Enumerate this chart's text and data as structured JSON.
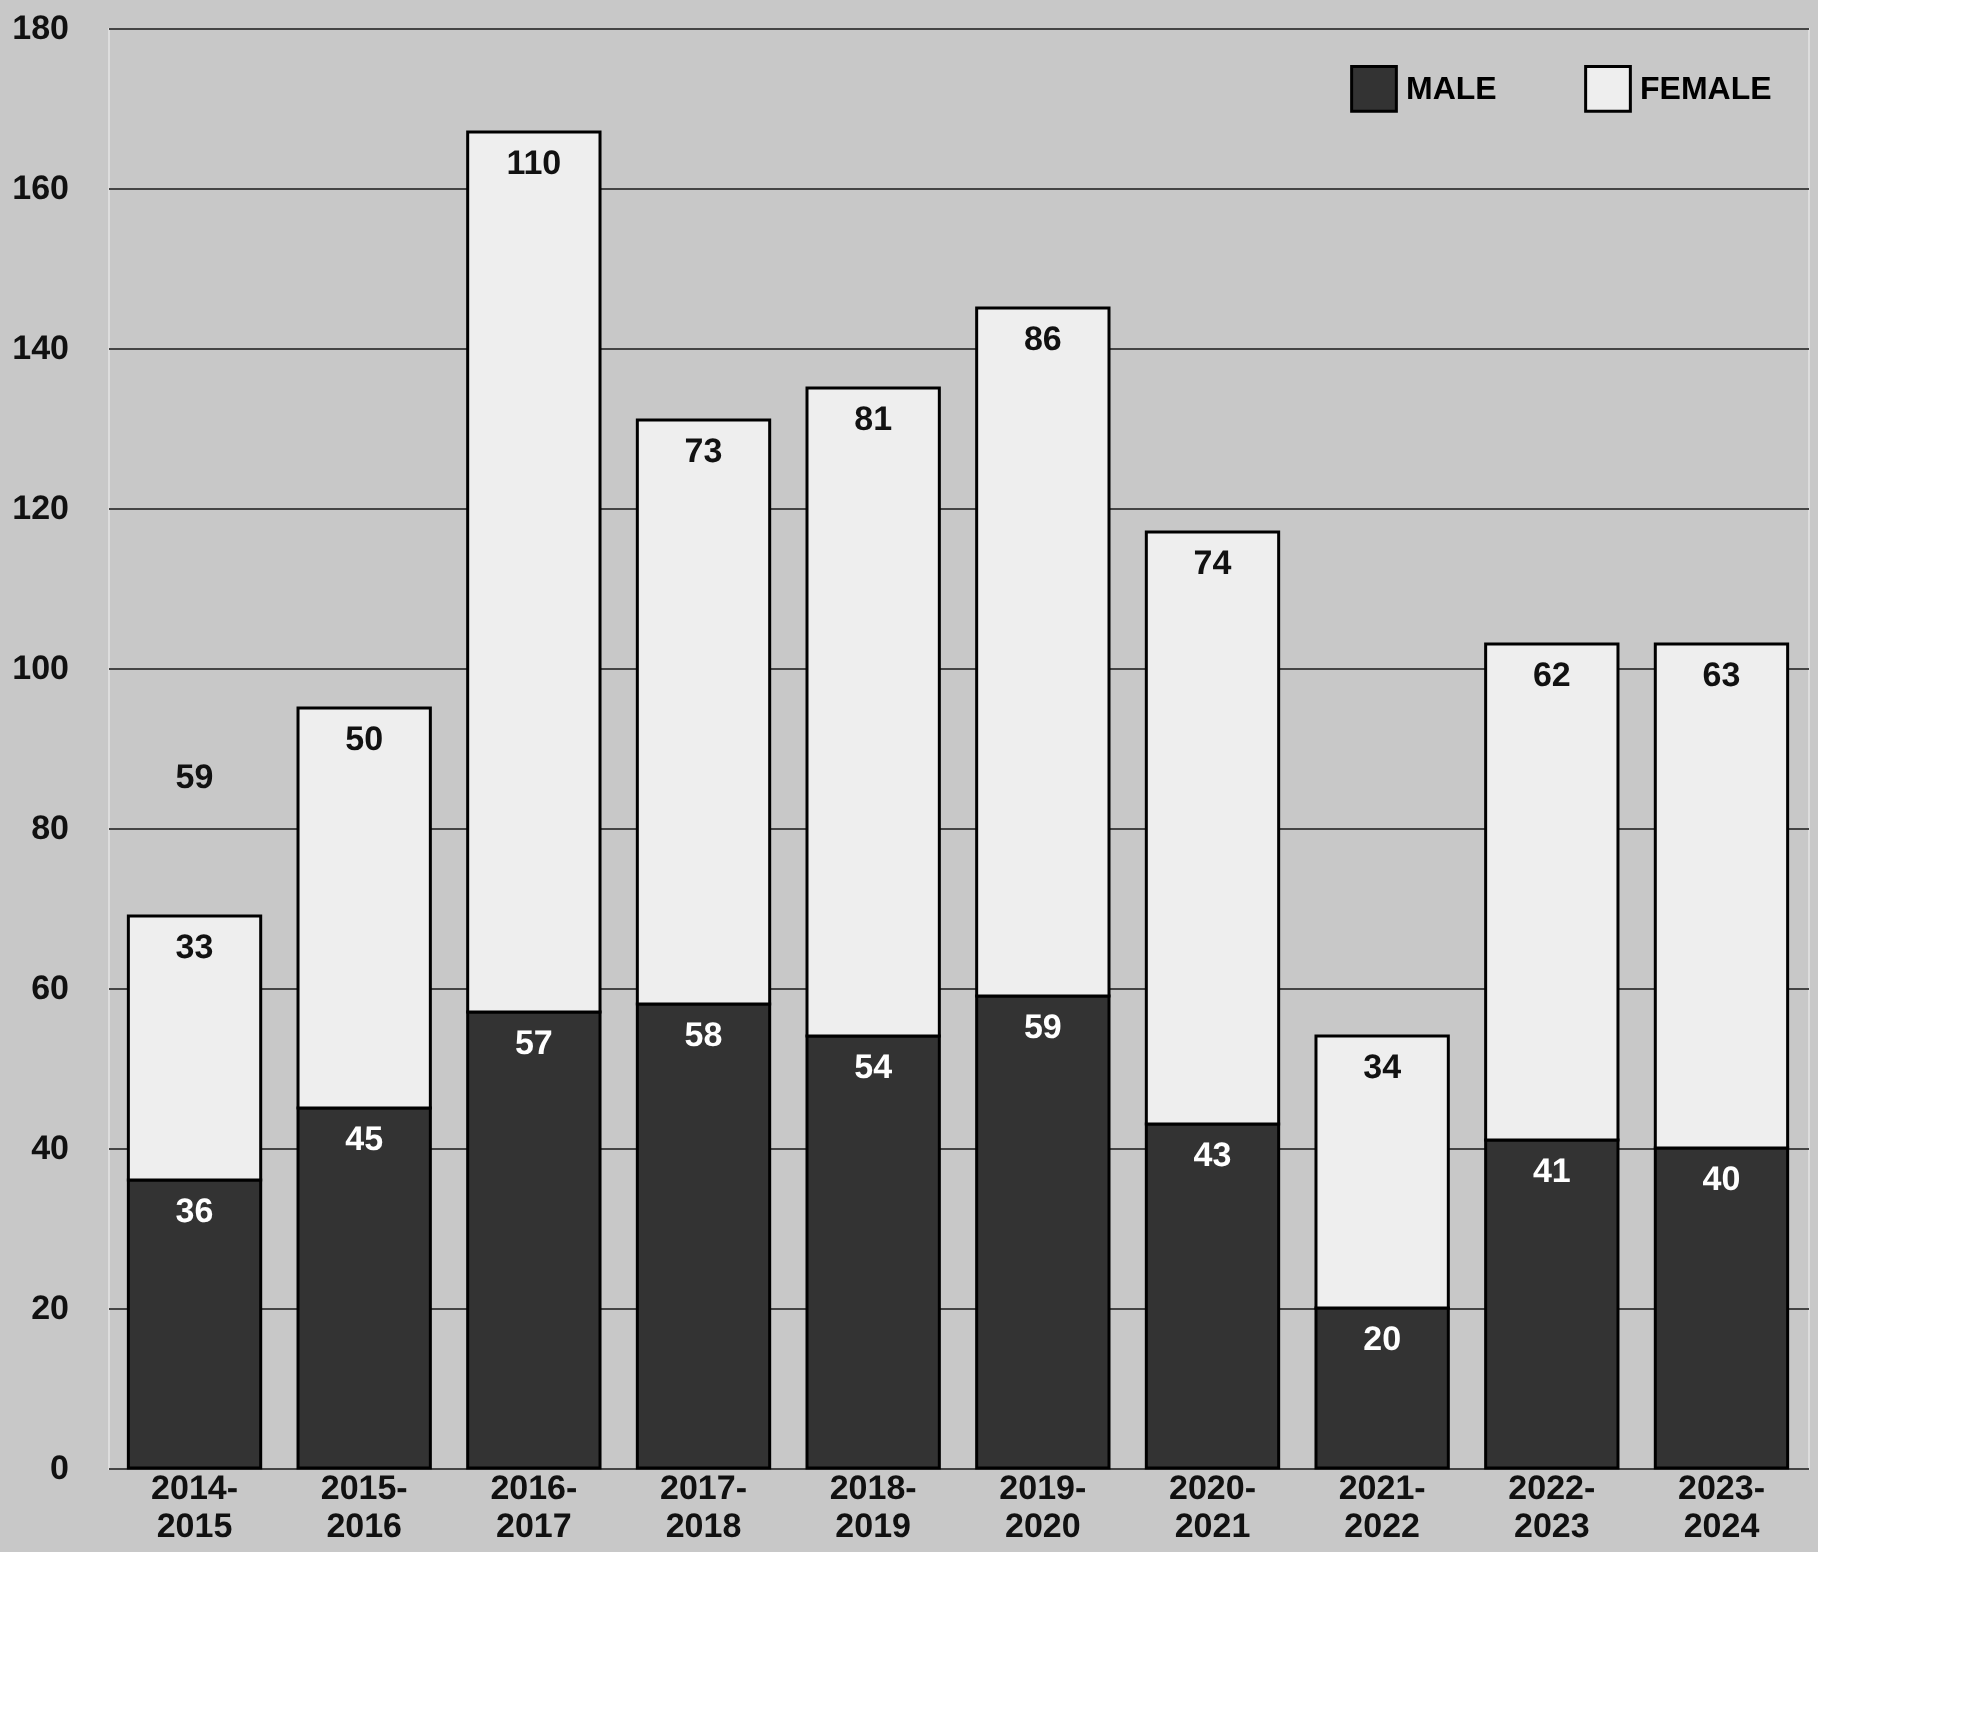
{
  "chart_data": {
    "type": "bar",
    "stacked": true,
    "categories": [
      "2014-2015",
      "2015-2016",
      "2016-2017",
      "2017-2018",
      "2018-2019",
      "2019-2020",
      "2020-2021",
      "2021-2022",
      "2022-2023",
      "2023-2024"
    ],
    "series": [
      {
        "name": "MALE",
        "color": "#333333",
        "values": [
          36,
          45,
          57,
          58,
          54,
          59,
          43,
          20,
          41,
          40
        ]
      },
      {
        "name": "FEMALE",
        "color": "#eeeeee",
        "values": [
          33,
          50,
          110,
          73,
          81,
          86,
          74,
          34,
          62,
          63
        ]
      }
    ],
    "ylim": [
      0,
      180
    ],
    "yticks": [
      0,
      20,
      40,
      60,
      80,
      100,
      120,
      140,
      160,
      180
    ],
    "grid": "y",
    "legend": "top right",
    "data_labels": true,
    "annotations": [
      "59"
    ]
  }
}
